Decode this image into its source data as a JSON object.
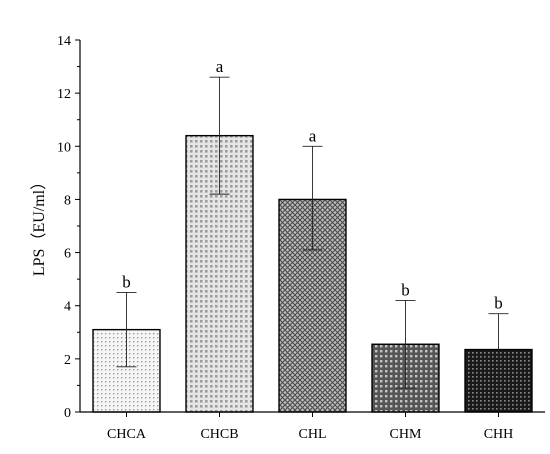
{
  "chart_data": {
    "type": "bar",
    "title": "",
    "xlabel": "",
    "ylabel": "LPS（EU/ml）",
    "ylim": [
      0,
      14
    ],
    "yticks": [
      0,
      2,
      4,
      6,
      8,
      10,
      12,
      14
    ],
    "categories": [
      "CHCA",
      "CHCB",
      "CHL",
      "CHM",
      "CHH"
    ],
    "values": [
      3.1,
      10.4,
      8.0,
      2.55,
      2.35
    ],
    "error_low": [
      1.7,
      8.2,
      6.1,
      0.9,
      0.0
    ],
    "error_high": [
      4.5,
      12.6,
      10.0,
      4.2,
      3.7
    ],
    "significance": [
      "b",
      "a",
      "a",
      "b",
      "b"
    ],
    "patterns": [
      "light-dots",
      "light-grid",
      "cross-hatch",
      "dark-grid",
      "dense-dark-grid"
    ],
    "grid": false,
    "legend": "none"
  }
}
